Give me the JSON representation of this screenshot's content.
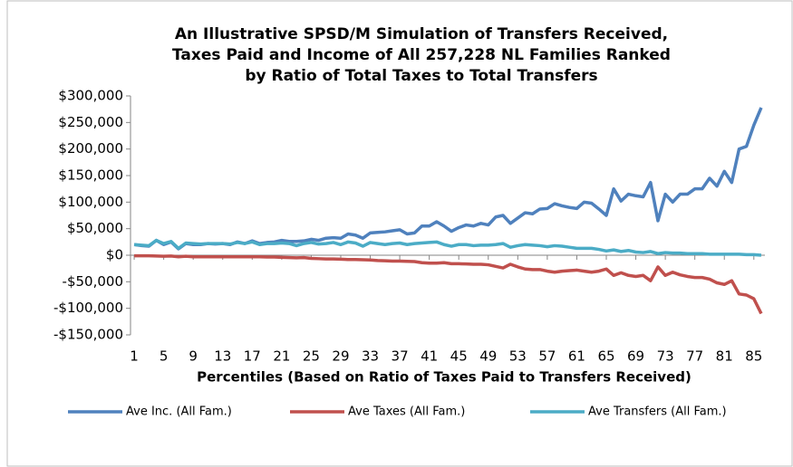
{
  "chart_data": {
    "type": "line",
    "title": [
      "An Illustrative SPSD/M Simulation of Transfers Received,",
      "Taxes Paid and Income of All 257,228 NL Families Ranked",
      "by Ratio of Total Taxes to Total Transfers"
    ],
    "x_label": "Percentiles (Based on Ratio of Taxes Paid to Transfers Received)",
    "x": [
      1,
      2,
      3,
      4,
      5,
      6,
      7,
      8,
      9,
      10,
      11,
      12,
      13,
      14,
      15,
      16,
      17,
      18,
      19,
      20,
      21,
      22,
      23,
      24,
      25,
      26,
      27,
      28,
      29,
      30,
      31,
      32,
      33,
      34,
      35,
      36,
      37,
      38,
      39,
      40,
      41,
      42,
      43,
      44,
      45,
      46,
      47,
      48,
      49,
      50,
      51,
      52,
      53,
      54,
      55,
      56,
      57,
      58,
      59,
      60,
      61,
      62,
      63,
      64,
      65,
      66,
      67,
      68,
      69,
      70,
      71,
      72,
      73,
      74,
      75,
      76,
      77,
      78,
      79,
      80,
      81,
      82,
      83,
      84,
      85,
      86
    ],
    "xlim": [
      0.5,
      86.5
    ],
    "xticks": [
      1,
      5,
      9,
      13,
      17,
      21,
      25,
      29,
      33,
      37,
      41,
      45,
      49,
      53,
      57,
      61,
      65,
      69,
      73,
      77,
      81,
      85
    ],
    "ylim": [
      -150000,
      300000
    ],
    "yticks": [
      {
        "value": -150000,
        "label": "-$150,000"
      },
      {
        "value": -100000,
        "label": "-$100,000"
      },
      {
        "value": -50000,
        "label": "-$50,000"
      },
      {
        "value": 0,
        "label": "$0"
      },
      {
        "value": 50000,
        "label": "$50,000"
      },
      {
        "value": 100000,
        "label": "$100,000"
      },
      {
        "value": 150000,
        "label": "$150,000"
      },
      {
        "value": 200000,
        "label": "$200,000"
      },
      {
        "value": 250000,
        "label": "$250,000"
      },
      {
        "value": 300000,
        "label": "$300,000"
      }
    ],
    "grid": false,
    "legend": "bottom",
    "series": [
      {
        "name": "Ave Inc. (All Fam.)",
        "color": "#4f81bd",
        "values": [
          20000,
          18000,
          17000,
          28000,
          20000,
          25000,
          12000,
          22000,
          20000,
          20000,
          22000,
          21000,
          22000,
          20000,
          25000,
          22000,
          27000,
          22000,
          24000,
          25000,
          28000,
          26000,
          26000,
          27000,
          30000,
          28000,
          32000,
          33000,
          32000,
          40000,
          38000,
          32000,
          42000,
          43000,
          44000,
          46000,
          48000,
          40000,
          42000,
          55000,
          55000,
          63000,
          55000,
          45000,
          52000,
          57000,
          55000,
          60000,
          57000,
          72000,
          75000,
          60000,
          70000,
          80000,
          78000,
          87000,
          88000,
          97000,
          93000,
          90000,
          88000,
          100000,
          98000,
          87000,
          75000,
          125000,
          102000,
          115000,
          112000,
          110000,
          137000,
          65000,
          115000,
          100000,
          115000,
          115000,
          125000,
          125000,
          145000,
          130000,
          158000,
          137000,
          200000,
          205000,
          245000,
          278000
        ]
      },
      {
        "name": "Ave Taxes (All Fam.)",
        "color": "#c0504d",
        "values": [
          -1000,
          -1000,
          -1000,
          -1500,
          -2000,
          -1500,
          -3000,
          -2000,
          -3000,
          -3000,
          -3000,
          -3000,
          -3000,
          -3000,
          -3000,
          -3000,
          -3000,
          -3000,
          -3500,
          -3500,
          -4000,
          -4500,
          -5000,
          -4500,
          -6000,
          -6500,
          -7000,
          -7000,
          -7500,
          -8000,
          -8000,
          -8500,
          -9000,
          -10000,
          -10500,
          -11000,
          -11000,
          -11500,
          -12000,
          -14000,
          -15000,
          -15000,
          -14000,
          -16000,
          -16000,
          -16500,
          -17000,
          -17000,
          -18000,
          -21000,
          -24000,
          -17000,
          -22000,
          -26000,
          -27000,
          -27000,
          -30000,
          -32000,
          -30000,
          -29000,
          -28000,
          -30000,
          -32000,
          -30000,
          -26000,
          -38000,
          -33000,
          -38000,
          -40000,
          -38000,
          -48000,
          -22000,
          -38000,
          -32000,
          -37000,
          -40000,
          -42000,
          -42000,
          -45000,
          -52000,
          -55000,
          -48000,
          -73000,
          -75000,
          -82000,
          -110000
        ]
      },
      {
        "name": "Ave Transfers (All Fam.)",
        "color": "#4bacc6",
        "values": [
          20000,
          19000,
          18000,
          28000,
          22000,
          26000,
          13000,
          23000,
          22000,
          21000,
          22000,
          22000,
          22000,
          21000,
          24000,
          22000,
          25000,
          20000,
          22000,
          22000,
          23000,
          22000,
          18000,
          22000,
          24000,
          21000,
          22000,
          24000,
          20000,
          25000,
          23000,
          17000,
          24000,
          22000,
          20000,
          22000,
          23000,
          20000,
          22000,
          23000,
          24000,
          25000,
          20000,
          17000,
          20000,
          20000,
          18000,
          19000,
          19000,
          20000,
          22000,
          15000,
          18000,
          20000,
          19000,
          18000,
          16000,
          18000,
          17000,
          15000,
          13000,
          13000,
          13000,
          11000,
          8000,
          10000,
          7000,
          9000,
          6000,
          5000,
          7000,
          3000,
          5000,
          4000,
          4000,
          3000,
          3000,
          3000,
          2000,
          2000,
          2000,
          2000,
          2000,
          1000,
          1000,
          0
        ]
      }
    ]
  }
}
